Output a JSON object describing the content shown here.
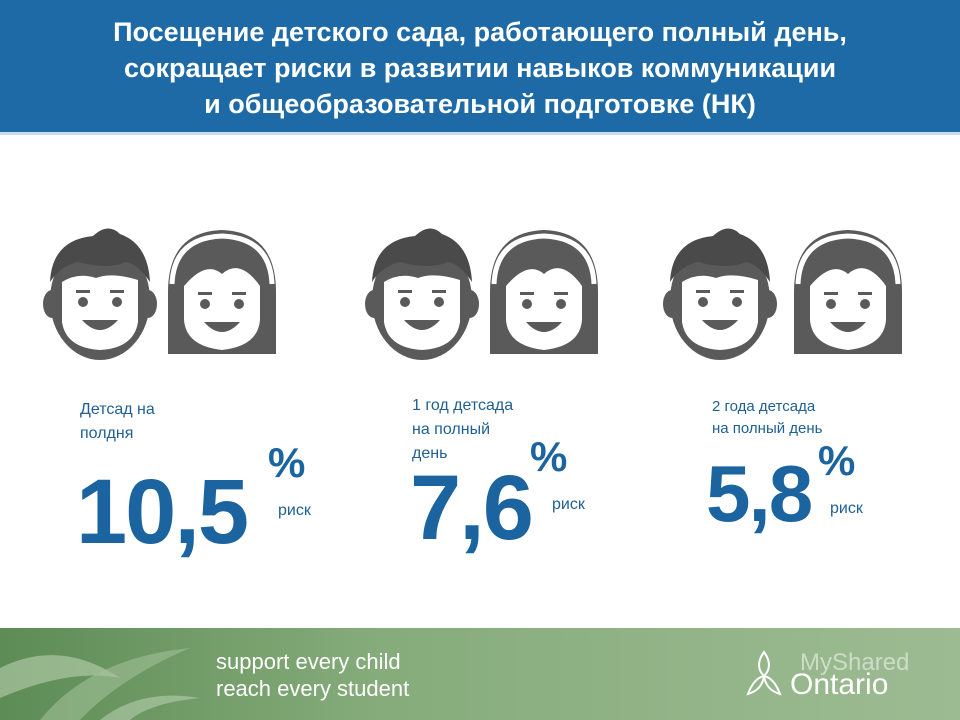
{
  "header": {
    "title_line1": "Посещение детского сада, работающего полный день,",
    "title_line2": "сокращает риски в развитии навыков коммуникации",
    "title_line3": "и общеобразовательной подготовке (НК)"
  },
  "groups": [
    {
      "caption_line1": "Детсад на",
      "caption_line2": "полдня",
      "caption_line3": "",
      "value": "10,5",
      "percent_sign": "%",
      "risk_label": "риск"
    },
    {
      "caption_line1": "1 год детсада",
      "caption_line2": "на полный",
      "caption_line3": "день",
      "value": "7,6",
      "percent_sign": "%",
      "risk_label": "риск"
    },
    {
      "caption_line1": "2 года детсада",
      "caption_line2": "на полный день",
      "caption_line3": "",
      "value": "5,8",
      "percent_sign": "%",
      "risk_label": "риск"
    }
  ],
  "footer": {
    "tagline_line1": "support every child",
    "tagline_line2": "reach every student",
    "brand": "Ontario",
    "watermark": "MyShared"
  },
  "colors": {
    "header_bg": "#1e6aa6",
    "accent_blue": "#1b64a0",
    "face_gray": "#5a5a5a",
    "footer_green": "#86ac7b"
  },
  "icons": [
    "boy-face-icon",
    "girl-face-icon",
    "trillium-logo-icon"
  ]
}
